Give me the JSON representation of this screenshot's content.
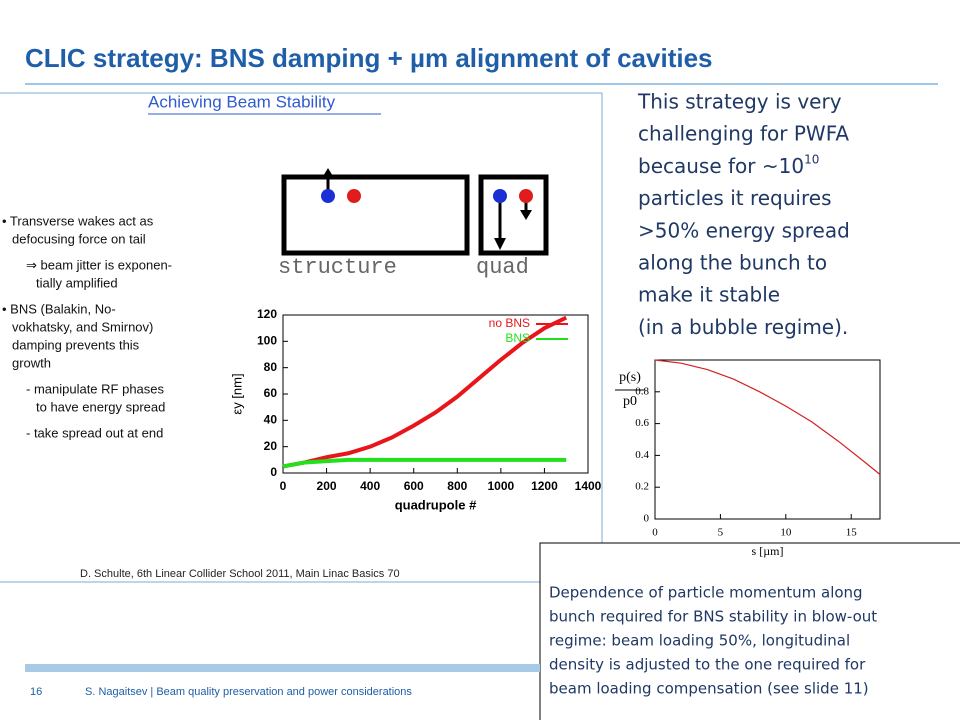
{
  "title": "CLIC strategy: BNS damping + µm alignment of cavities",
  "inset": {
    "heading": "Achieving Beam Stability",
    "bullets": [
      [
        "• Transverse wakes act as",
        "defocusing force on tail"
      ],
      [
        "⇒ beam jitter is exponen-",
        "tially amplified"
      ],
      [
        "• BNS (Balakin, No-",
        "vokhatsky, and Smirnov)",
        "damping prevents this",
        "growth"
      ],
      [
        "- manipulate RF phases",
        "to have energy spread"
      ],
      [
        "- take spread out at end"
      ]
    ],
    "diagram": {
      "structure_label": "structure",
      "quad_label": "quad"
    },
    "credit": "D. Schulte, 6th Linear Collider School 2011, Main Linac Basics   70"
  },
  "right_text": {
    "lines": [
      "This strategy is very",
      "challenging for PWFA",
      "because for ~10",
      "particles it requires",
      ">50% energy spread",
      "along the bunch to",
      "make it stable",
      "(in a bubble regime)."
    ],
    "superscript": "10"
  },
  "chart_data": [
    {
      "type": "line",
      "ylabel": "εy [nm]",
      "xlabel": "quadrupole #",
      "x": [
        0,
        100,
        200,
        300,
        400,
        500,
        600,
        700,
        800,
        900,
        1000,
        1100,
        1200,
        1300
      ],
      "series": [
        {
          "name": "no BNS",
          "color": "#e8161b",
          "values": [
            5,
            8,
            12,
            15,
            20,
            27,
            36,
            46,
            58,
            72,
            86,
            99,
            110,
            118
          ]
        },
        {
          "name": "BNS",
          "color": "#22e01c",
          "values": [
            5,
            8,
            9,
            10,
            10,
            10,
            10,
            10,
            10,
            10,
            10,
            10,
            10,
            10
          ]
        }
      ],
      "xlim": [
        0,
        1400
      ],
      "xticks": [
        0,
        200,
        400,
        600,
        800,
        1000,
        1200,
        1400
      ],
      "ylim": [
        0,
        120
      ],
      "yticks": [
        0,
        20,
        40,
        60,
        80,
        100,
        120
      ]
    },
    {
      "type": "line",
      "ylabel": {
        "numerator": "p(s)",
        "denominator": "p0"
      },
      "xlabel": "s [µm]",
      "x": [
        0,
        2,
        4,
        6,
        8,
        10,
        12,
        14,
        16,
        17.2
      ],
      "series": [
        {
          "color": "#d42020",
          "values": [
            1,
            0.98,
            0.94,
            0.88,
            0.8,
            0.71,
            0.61,
            0.49,
            0.36,
            0.28
          ]
        }
      ],
      "xlim": [
        0,
        17.2
      ],
      "xticks": [
        0,
        5,
        10,
        15
      ],
      "ylim": [
        0,
        1
      ],
      "yticks": [
        0,
        0.2,
        0.4,
        0.6,
        0.8
      ]
    }
  ],
  "caption": [
    "Dependence of particle momentum along",
    "bunch required for BNS stability in blow-out",
    "regime: beam loading 50%, longitudinal",
    "density is adjusted to the one required for",
    "beam loading compensation (see slide 11)"
  ],
  "footer": {
    "page": "16",
    "text": "S. Nagaitsev | Beam quality preservation and power considerations"
  }
}
